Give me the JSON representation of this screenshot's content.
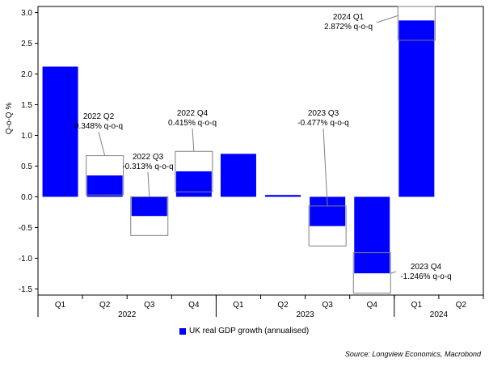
{
  "chart_data": {
    "type": "bar",
    "title": "",
    "ylabel": "Q-o-Q %",
    "xlabel": "",
    "ylim": [
      -1.6,
      3.1
    ],
    "y_ticks": [
      "3.0",
      "2.5",
      "2.0",
      "1.5",
      "1.0",
      "0.5",
      "0.0",
      "-0.5",
      "-1.0",
      "-1.5"
    ],
    "y_tick_values": [
      3.0,
      2.5,
      2.0,
      1.5,
      1.0,
      0.5,
      0.0,
      -0.5,
      -1.0,
      -1.5
    ],
    "categories": [
      "Q1",
      "Q2",
      "Q3",
      "Q4",
      "Q1",
      "Q2",
      "Q3",
      "Q4",
      "Q1",
      "Q2"
    ],
    "years": [
      {
        "label": "2022",
        "start": 0,
        "end": 3
      },
      {
        "label": "2023",
        "start": 4,
        "end": 7
      },
      {
        "label": "2024",
        "start": 8,
        "end": 9
      }
    ],
    "series": [
      {
        "name": "UK real GDP growth (annualised)",
        "color": "#0000ff",
        "values": [
          2.12,
          0.348,
          -0.313,
          0.415,
          0.7,
          0.03,
          -0.477,
          -1.246,
          2.872,
          null
        ]
      }
    ],
    "annotations": [
      {
        "index": 1,
        "value": 0.348,
        "line1": "2022 Q2",
        "line2": "0.348% q-o-q",
        "box_low": 0.03,
        "box_high": 0.67
      },
      {
        "index": 2,
        "value": -0.313,
        "line1": "2022 Q3",
        "line2": "-0.313% q-o-q",
        "box_low": -0.63,
        "box_high": 0.0
      },
      {
        "index": 3,
        "value": 0.415,
        "line1": "2022 Q4",
        "line2": "0.415% q-o-q",
        "box_low": 0.08,
        "box_high": 0.74
      },
      {
        "index": 6,
        "value": -0.477,
        "line1": "2023 Q3",
        "line2": "-0.477% q-o-q",
        "box_low": -0.8,
        "box_high": -0.15
      },
      {
        "index": 7,
        "value": -1.246,
        "line1": "2023 Q4",
        "line2": "-1.246% q-o-q",
        "box_low": -1.57,
        "box_high": -0.91
      },
      {
        "index": 8,
        "value": 2.872,
        "line1": "2024 Q1",
        "line2": "2.872% q-o-q",
        "box_low": 2.55,
        "box_high": 3.1
      }
    ]
  },
  "legend": {
    "label": "UK real GDP growth (annualised)",
    "color": "#0000ff"
  },
  "source": "Source: Longview Economics, Macrobond"
}
